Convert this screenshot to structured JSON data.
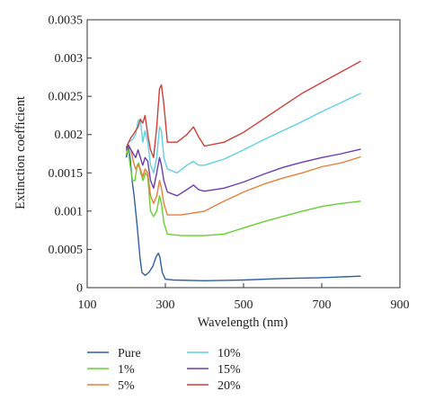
{
  "chart_data": {
    "type": "line",
    "title": "",
    "xlabel": "Wavelength (nm)",
    "ylabel": "Extinction coefficient",
    "xlim": [
      100,
      900
    ],
    "ylim": [
      0,
      0.0035
    ],
    "x_ticks": [
      100,
      300,
      500,
      700,
      900
    ],
    "x_tick_labels": [
      "100",
      "300",
      "500",
      "700",
      "900"
    ],
    "y_ticks": [
      0,
      0.0005,
      0.001,
      0.0015,
      0.002,
      0.0025,
      0.003,
      0.0035
    ],
    "y_tick_labels": [
      "0",
      "0.0005",
      "0.001",
      "0.0015",
      "0.002",
      "0.0025",
      "0.003",
      "0.0035"
    ],
    "grid": false,
    "legend_position": "bottom",
    "series": [
      {
        "name": "Pure",
        "color": "#2f5fa7",
        "points": [
          [
            200,
            0.0017
          ],
          [
            205,
            0.00185
          ],
          [
            210,
            0.0017
          ],
          [
            215,
            0.0014
          ],
          [
            220,
            0.0012
          ],
          [
            228,
            0.0008
          ],
          [
            235,
            0.0004
          ],
          [
            240,
            0.0002
          ],
          [
            248,
            0.00016
          ],
          [
            258,
            0.0002
          ],
          [
            268,
            0.00028
          ],
          [
            276,
            0.0004
          ],
          [
            282,
            0.00045
          ],
          [
            286,
            0.0004
          ],
          [
            292,
            0.0002
          ],
          [
            300,
            0.00011
          ],
          [
            320,
            0.0001
          ],
          [
            400,
            9e-05
          ],
          [
            500,
            0.0001
          ],
          [
            600,
            0.00012
          ],
          [
            700,
            0.00013
          ],
          [
            800,
            0.00015
          ]
        ]
      },
      {
        "name": "1%",
        "color": "#66d033",
        "points": [
          [
            200,
            0.00175
          ],
          [
            205,
            0.0018
          ],
          [
            210,
            0.0016
          ],
          [
            216,
            0.0014
          ],
          [
            222,
            0.0014
          ],
          [
            228,
            0.0016
          ],
          [
            232,
            0.00163
          ],
          [
            237,
            0.0015
          ],
          [
            243,
            0.0014
          ],
          [
            249,
            0.0015
          ],
          [
            255,
            0.00145
          ],
          [
            262,
            0.001
          ],
          [
            270,
            0.00093
          ],
          [
            278,
            0.001
          ],
          [
            285,
            0.0012
          ],
          [
            290,
            0.0011
          ],
          [
            296,
            0.00085
          ],
          [
            305,
            0.0007
          ],
          [
            340,
            0.00068
          ],
          [
            400,
            0.00068
          ],
          [
            450,
            0.0007
          ],
          [
            500,
            0.00078
          ],
          [
            550,
            0.00086
          ],
          [
            600,
            0.00093
          ],
          [
            650,
            0.001
          ],
          [
            700,
            0.00106
          ],
          [
            750,
            0.0011
          ],
          [
            800,
            0.00113
          ]
        ]
      },
      {
        "name": "5%",
        "color": "#e77f3a",
        "points": [
          [
            200,
            0.00178
          ],
          [
            206,
            0.00185
          ],
          [
            212,
            0.0018
          ],
          [
            218,
            0.00165
          ],
          [
            224,
            0.00155
          ],
          [
            230,
            0.0016
          ],
          [
            236,
            0.00155
          ],
          [
            242,
            0.00145
          ],
          [
            248,
            0.00155
          ],
          [
            255,
            0.0015
          ],
          [
            262,
            0.0012
          ],
          [
            270,
            0.0011
          ],
          [
            278,
            0.0012
          ],
          [
            285,
            0.0014
          ],
          [
            290,
            0.0013
          ],
          [
            296,
            0.0011
          ],
          [
            305,
            0.00095
          ],
          [
            340,
            0.00095
          ],
          [
            400,
            0.001
          ],
          [
            450,
            0.00113
          ],
          [
            500,
            0.00125
          ],
          [
            550,
            0.00135
          ],
          [
            600,
            0.00143
          ],
          [
            650,
            0.0015
          ],
          [
            700,
            0.00158
          ],
          [
            750,
            0.00163
          ],
          [
            800,
            0.00171
          ]
        ]
      },
      {
        "name": "10%",
        "color": "#5fd1e4",
        "points": [
          [
            200,
            0.00182
          ],
          [
            206,
            0.0019
          ],
          [
            212,
            0.00192
          ],
          [
            218,
            0.00195
          ],
          [
            224,
            0.002
          ],
          [
            230,
            0.00218
          ],
          [
            236,
            0.0022
          ],
          [
            242,
            0.0019
          ],
          [
            248,
            0.00205
          ],
          [
            255,
            0.0019
          ],
          [
            262,
            0.0016
          ],
          [
            270,
            0.0015
          ],
          [
            278,
            0.0017
          ],
          [
            285,
            0.0021
          ],
          [
            290,
            0.00205
          ],
          [
            296,
            0.0017
          ],
          [
            305,
            0.00155
          ],
          [
            330,
            0.0015
          ],
          [
            355,
            0.0016
          ],
          [
            372,
            0.00165
          ],
          [
            385,
            0.0016
          ],
          [
            400,
            0.0016
          ],
          [
            450,
            0.00168
          ],
          [
            500,
            0.0018
          ],
          [
            550,
            0.00193
          ],
          [
            600,
            0.00205
          ],
          [
            650,
            0.00217
          ],
          [
            700,
            0.0023
          ],
          [
            750,
            0.00242
          ],
          [
            800,
            0.00254
          ]
        ]
      },
      {
        "name": "15%",
        "color": "#6c3bb5",
        "points": [
          [
            200,
            0.0018
          ],
          [
            206,
            0.00186
          ],
          [
            212,
            0.0018
          ],
          [
            218,
            0.00175
          ],
          [
            224,
            0.0017
          ],
          [
            230,
            0.0018
          ],
          [
            236,
            0.0017
          ],
          [
            242,
            0.0016
          ],
          [
            248,
            0.0017
          ],
          [
            255,
            0.00165
          ],
          [
            262,
            0.0014
          ],
          [
            270,
            0.0013
          ],
          [
            278,
            0.0015
          ],
          [
            285,
            0.0017
          ],
          [
            290,
            0.0016
          ],
          [
            296,
            0.0014
          ],
          [
            305,
            0.00125
          ],
          [
            330,
            0.0012
          ],
          [
            355,
            0.00128
          ],
          [
            372,
            0.00134
          ],
          [
            385,
            0.00128
          ],
          [
            400,
            0.00126
          ],
          [
            450,
            0.0013
          ],
          [
            500,
            0.00138
          ],
          [
            550,
            0.00148
          ],
          [
            600,
            0.00157
          ],
          [
            650,
            0.00164
          ],
          [
            700,
            0.0017
          ],
          [
            750,
            0.00175
          ],
          [
            800,
            0.00181
          ]
        ]
      },
      {
        "name": "20%",
        "color": "#cc3f3a",
        "points": [
          [
            200,
            0.00183
          ],
          [
            206,
            0.0019
          ],
          [
            212,
            0.00196
          ],
          [
            218,
            0.002
          ],
          [
            224,
            0.00205
          ],
          [
            230,
            0.0021
          ],
          [
            236,
            0.0022
          ],
          [
            242,
            0.00215
          ],
          [
            248,
            0.00225
          ],
          [
            255,
            0.002
          ],
          [
            262,
            0.0018
          ],
          [
            270,
            0.0017
          ],
          [
            278,
            0.0021
          ],
          [
            285,
            0.0026
          ],
          [
            290,
            0.00265
          ],
          [
            296,
            0.0024
          ],
          [
            305,
            0.0019
          ],
          [
            330,
            0.0019
          ],
          [
            355,
            0.002
          ],
          [
            372,
            0.0021
          ],
          [
            385,
            0.00197
          ],
          [
            400,
            0.00185
          ],
          [
            450,
            0.0019
          ],
          [
            500,
            0.00203
          ],
          [
            550,
            0.0022
          ],
          [
            600,
            0.00237
          ],
          [
            650,
            0.00254
          ],
          [
            700,
            0.00268
          ],
          [
            750,
            0.00282
          ],
          [
            800,
            0.00296
          ]
        ]
      }
    ]
  }
}
